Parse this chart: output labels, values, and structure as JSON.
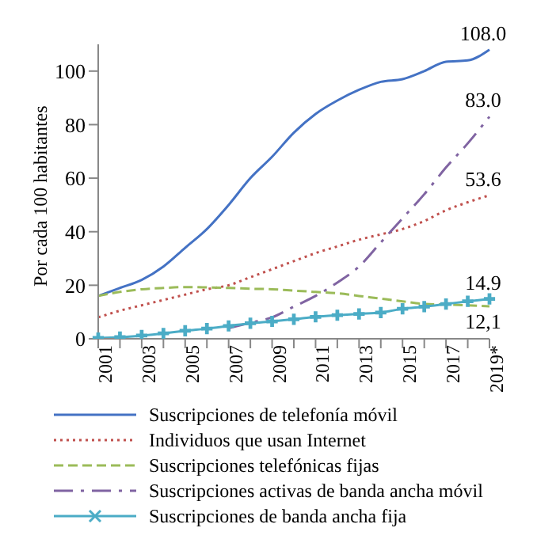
{
  "chart_data": {
    "type": "line",
    "ylabel": "Por cada 100 habitantes",
    "categories": [
      "2001",
      null,
      "2003",
      null,
      "2005",
      null,
      "2007",
      null,
      "2009",
      null,
      "2011",
      null,
      "2013",
      null,
      "2015",
      null,
      "2017",
      null,
      "2019*"
    ],
    "series": [
      {
        "name": "Suscripciones de telefonía móvil",
        "color": "#4472c4",
        "line_style": "solid",
        "marker": "none",
        "values": [
          16,
          19,
          22,
          27,
          34,
          41,
          50,
          60,
          68,
          77,
          84,
          89,
          93,
          96,
          97,
          100,
          103.5,
          104,
          108
        ],
        "value_labels": [
          null,
          null,
          null,
          null,
          null,
          null,
          null,
          null,
          null,
          null,
          null,
          null,
          null,
          null,
          null,
          null,
          null,
          null,
          "108.0"
        ]
      },
      {
        "name": "Individuos que usan Internet",
        "color": "#c0504d",
        "line_style": "dotted",
        "marker": "none",
        "values": [
          8,
          10.5,
          12.5,
          14.5,
          16.5,
          18.5,
          20,
          23,
          26,
          29,
          32,
          34.5,
          37,
          39,
          41,
          44,
          48,
          51,
          53.6
        ],
        "value_labels": [
          null,
          null,
          null,
          null,
          null,
          null,
          null,
          null,
          null,
          null,
          null,
          null,
          null,
          null,
          null,
          null,
          null,
          null,
          "53.6"
        ]
      },
      {
        "name": "Suscripciones telefónicas fijas",
        "color": "#9bbb59",
        "line_style": "dashed",
        "marker": "none",
        "values": [
          16,
          17.5,
          18.5,
          19,
          19.3,
          19.2,
          19,
          18.7,
          18.5,
          18,
          17.5,
          17,
          16,
          15,
          14,
          13,
          12.8,
          12.5,
          12.1
        ],
        "value_labels": [
          null,
          null,
          null,
          null,
          null,
          null,
          null,
          null,
          null,
          null,
          null,
          null,
          null,
          null,
          null,
          null,
          null,
          null,
          "12,1"
        ]
      },
      {
        "name": "Suscripciones activas de banda ancha móvil",
        "color": "#8064a2",
        "line_style": "dashdot",
        "marker": "none",
        "values": [
          null,
          null,
          null,
          null,
          null,
          null,
          4,
          6,
          8,
          12,
          16,
          21,
          27,
          36,
          45,
          54,
          64,
          73,
          83
        ],
        "value_labels": [
          null,
          null,
          null,
          null,
          null,
          null,
          null,
          null,
          null,
          null,
          null,
          null,
          null,
          null,
          null,
          null,
          null,
          null,
          "83.0"
        ]
      },
      {
        "name": "Suscripciones de banda ancha fija",
        "color": "#4bacc6",
        "line_style": "solid",
        "marker": "cross",
        "values": [
          0.3,
          0.6,
          1.2,
          2,
          3,
          3.8,
          4.8,
          5.8,
          6.5,
          7.3,
          8.2,
          8.8,
          9.3,
          9.8,
          11.2,
          12,
          13,
          14,
          14.9
        ],
        "value_labels": [
          null,
          null,
          null,
          null,
          null,
          null,
          null,
          null,
          null,
          null,
          null,
          null,
          null,
          null,
          null,
          null,
          null,
          null,
          "14.9"
        ]
      }
    ],
    "ylim": [
      0,
      110
    ],
    "yticks": [
      0,
      20,
      40,
      60,
      80,
      100
    ],
    "grid": false,
    "legend": "bottom"
  }
}
